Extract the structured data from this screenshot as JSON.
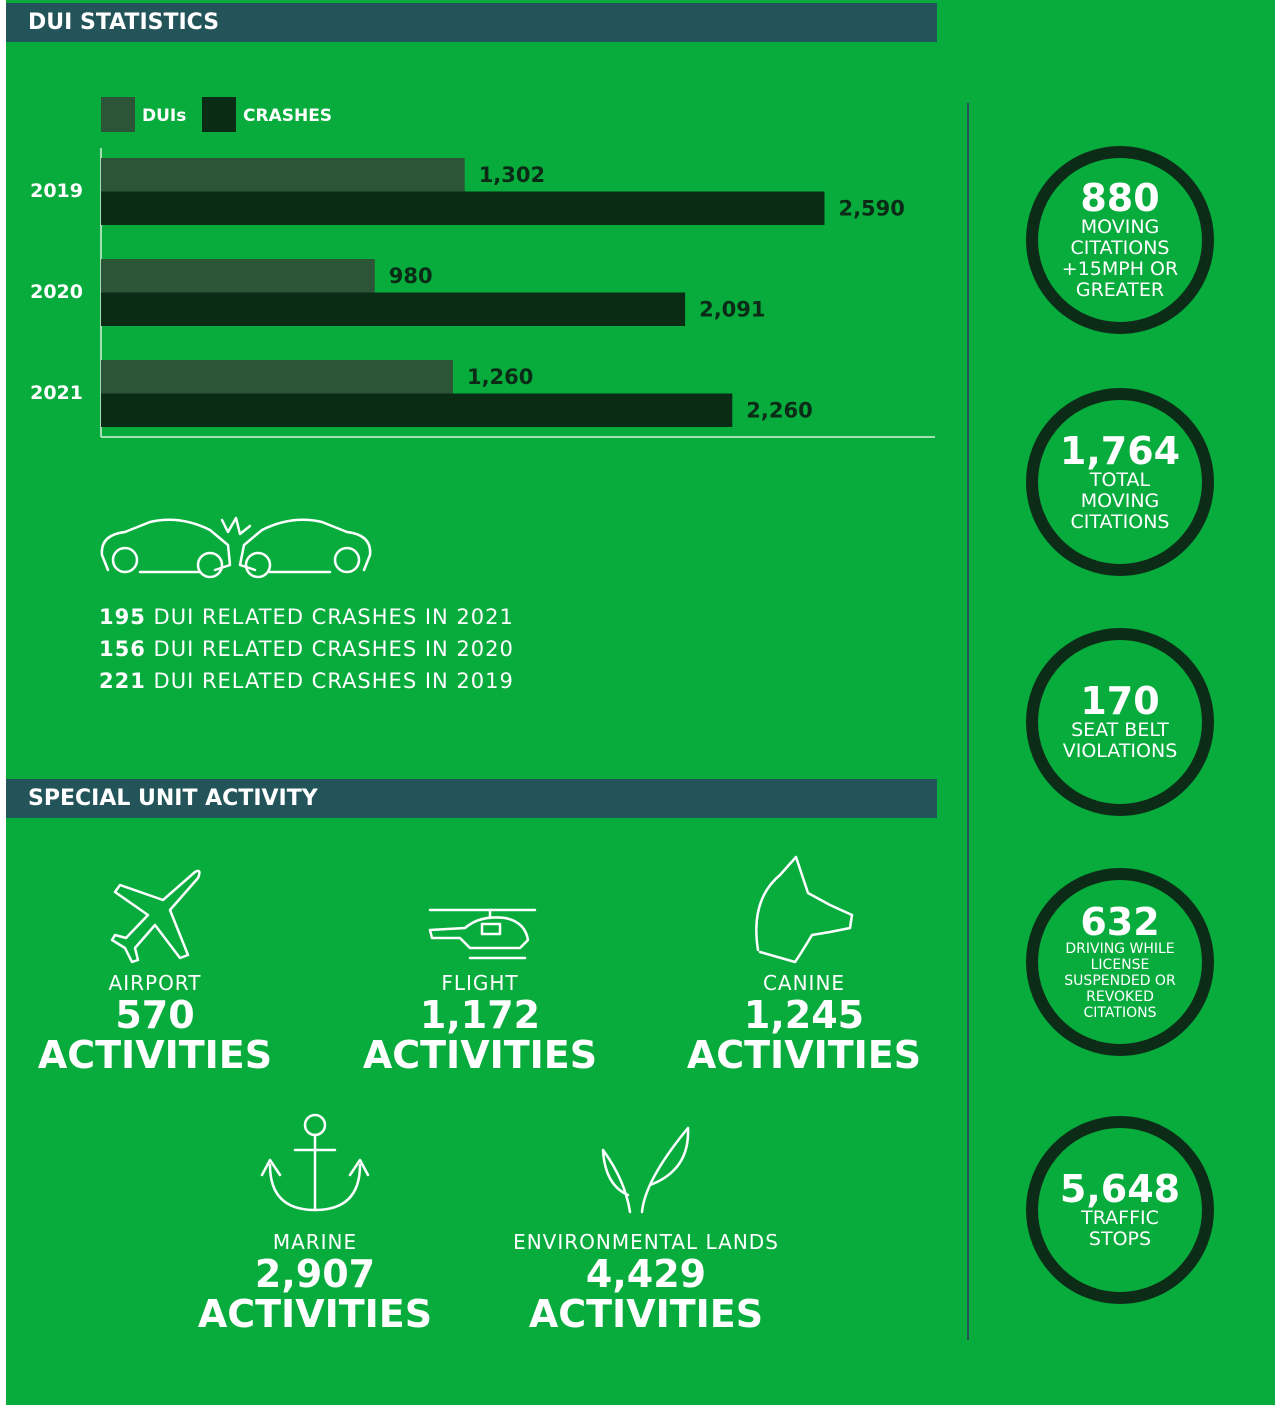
{
  "headers": {
    "dui": "DUI STATISTICS",
    "special": "SPECIAL UNIT ACTIVITY"
  },
  "chart_data": {
    "type": "bar",
    "horizontal": true,
    "categories": [
      "2019",
      "2020",
      "2021"
    ],
    "series": [
      {
        "name": "DUIs",
        "color": "#2c5538",
        "label_color": "#0b2b16",
        "values": [
          1302,
          980,
          1260
        ],
        "value_labels": [
          "1,302",
          "980",
          "1,260"
        ]
      },
      {
        "name": "CRASHES",
        "color": "#0a2c15",
        "label_color": "#0b2b16",
        "values": [
          2590,
          2091,
          2260
        ],
        "value_labels": [
          "2,590",
          "2,091",
          "2,260"
        ]
      }
    ],
    "xlim": [
      0,
      3000
    ]
  },
  "crashes": [
    {
      "number": 195,
      "text": "DUI RELATED CRASHES IN 2021"
    },
    {
      "number": 156,
      "text": "DUI RELATED CRASHES IN 2020"
    },
    {
      "number": 221,
      "text": "DUI RELATED CRASHES IN 2019"
    }
  ],
  "stats": [
    {
      "value": "880",
      "label": "MOVING CITATIONS +15MPH OR GREATER"
    },
    {
      "value": "1,764",
      "label": "TOTAL MOVING CITATIONS"
    },
    {
      "value": "170",
      "label": "SEAT BELT VIOLATIONS"
    },
    {
      "value": "632",
      "label": "DRIVING WHILE LICENSE SUSPENDED OR REVOKED CITATIONS"
    },
    {
      "value": "5,648",
      "label": "TRAFFIC STOPS"
    }
  ],
  "units": [
    {
      "name": "AIRPORT",
      "count": "570",
      "unit": "ACTIVITIES"
    },
    {
      "name": "FLIGHT",
      "count": "1,172",
      "unit": "ACTIVITIES"
    },
    {
      "name": "CANINE",
      "count": "1,245",
      "unit": "ACTIVITIES"
    },
    {
      "name": "MARINE",
      "count": "2,907",
      "unit": "ACTIVITIES"
    },
    {
      "name": "ENVIRONMENTAL LANDS",
      "count": "4,429",
      "unit": "ACTIVITIES"
    }
  ]
}
